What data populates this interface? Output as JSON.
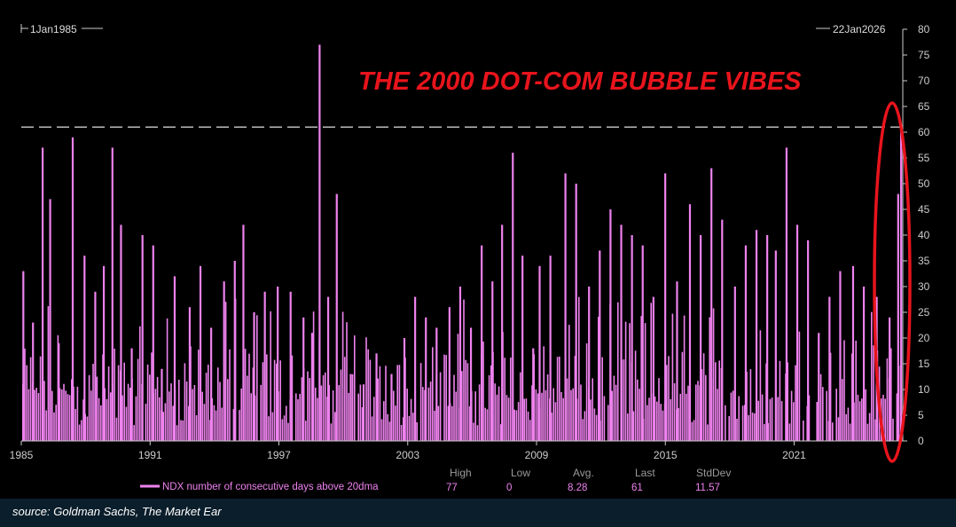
{
  "chart_data": {
    "type": "bar",
    "title": "THE 2000 DOT-COM BUBBLE VIBES",
    "date_start_label": "1Jan1985",
    "date_end_label": "22Jan2026",
    "x_tick_labels": [
      "1985",
      "1991",
      "1997",
      "2003",
      "2009",
      "2015",
      "2021"
    ],
    "x_tick_years": [
      1985,
      1991,
      1997,
      2003,
      2009,
      2015,
      2021
    ],
    "xlim": [
      1985.0,
      2026.06
    ],
    "ylim": [
      0,
      80
    ],
    "y_ticks": [
      0,
      5,
      10,
      15,
      20,
      25,
      30,
      35,
      40,
      45,
      50,
      55,
      60,
      65,
      70,
      75,
      80
    ],
    "reference_line": 61,
    "highlight_range": [
      2024.9,
      2026.06
    ],
    "series": [
      {
        "name": "NDX number of consecutive days above 20dma",
        "color": "#ee82ee",
        "stats_headers": [
          "High",
          "Low",
          "Avg.",
          "Last",
          "StdDev"
        ],
        "stats_values": [
          "77",
          "0",
          "8.28",
          "61",
          "11.57"
        ],
        "peaks": [
          {
            "x": 1985.05,
            "y": 33
          },
          {
            "x": 1985.5,
            "y": 23
          },
          {
            "x": 1985.95,
            "y": 57
          },
          {
            "x": 1986.3,
            "y": 47
          },
          {
            "x": 1986.7,
            "y": 19
          },
          {
            "x": 1987.35,
            "y": 59
          },
          {
            "x": 1987.9,
            "y": 36
          },
          {
            "x": 1988.4,
            "y": 29
          },
          {
            "x": 1988.8,
            "y": 34
          },
          {
            "x": 1989.2,
            "y": 57
          },
          {
            "x": 1989.6,
            "y": 42
          },
          {
            "x": 1990.1,
            "y": 18
          },
          {
            "x": 1990.6,
            "y": 40
          },
          {
            "x": 1991.1,
            "y": 38
          },
          {
            "x": 1991.5,
            "y": 14
          },
          {
            "x": 1992.1,
            "y": 32
          },
          {
            "x": 1992.8,
            "y": 26
          },
          {
            "x": 1993.3,
            "y": 34
          },
          {
            "x": 1993.8,
            "y": 22
          },
          {
            "x": 1994.4,
            "y": 31
          },
          {
            "x": 1994.9,
            "y": 35
          },
          {
            "x": 1995.3,
            "y": 42
          },
          {
            "x": 1995.8,
            "y": 25
          },
          {
            "x": 1996.3,
            "y": 29
          },
          {
            "x": 1996.9,
            "y": 30
          },
          {
            "x": 1997.5,
            "y": 29
          },
          {
            "x": 1998.1,
            "y": 24
          },
          {
            "x": 1998.5,
            "y": 21
          },
          {
            "x": 1998.85,
            "y": 77
          },
          {
            "x": 1999.25,
            "y": 28
          },
          {
            "x": 1999.65,
            "y": 48
          },
          {
            "x": 2000.3,
            "y": 13
          },
          {
            "x": 2000.9,
            "y": 11
          },
          {
            "x": 2001.5,
            "y": 17
          },
          {
            "x": 2002.2,
            "y": 13
          },
          {
            "x": 2002.8,
            "y": 20
          },
          {
            "x": 2003.3,
            "y": 28
          },
          {
            "x": 2003.8,
            "y": 24
          },
          {
            "x": 2004.3,
            "y": 22
          },
          {
            "x": 2004.9,
            "y": 26
          },
          {
            "x": 2005.4,
            "y": 30
          },
          {
            "x": 2005.9,
            "y": 22
          },
          {
            "x": 2006.4,
            "y": 38
          },
          {
            "x": 2006.9,
            "y": 31
          },
          {
            "x": 2007.35,
            "y": 42
          },
          {
            "x": 2007.85,
            "y": 56
          },
          {
            "x": 2008.3,
            "y": 36
          },
          {
            "x": 2008.8,
            "y": 18
          },
          {
            "x": 2009.1,
            "y": 34
          },
          {
            "x": 2009.6,
            "y": 36
          },
          {
            "x": 2010.3,
            "y": 52
          },
          {
            "x": 2010.8,
            "y": 50
          },
          {
            "x": 2011.4,
            "y": 30
          },
          {
            "x": 2011.9,
            "y": 37
          },
          {
            "x": 2012.4,
            "y": 45
          },
          {
            "x": 2012.9,
            "y": 42
          },
          {
            "x": 2013.4,
            "y": 40
          },
          {
            "x": 2013.9,
            "y": 38
          },
          {
            "x": 2014.4,
            "y": 28
          },
          {
            "x": 2014.95,
            "y": 52
          },
          {
            "x": 2015.5,
            "y": 31
          },
          {
            "x": 2016.1,
            "y": 46
          },
          {
            "x": 2016.6,
            "y": 40
          },
          {
            "x": 2017.1,
            "y": 53
          },
          {
            "x": 2017.6,
            "y": 43
          },
          {
            "x": 2018.2,
            "y": 30
          },
          {
            "x": 2018.7,
            "y": 38
          },
          {
            "x": 2019.2,
            "y": 41
          },
          {
            "x": 2019.7,
            "y": 40
          },
          {
            "x": 2020.1,
            "y": 37
          },
          {
            "x": 2020.6,
            "y": 57
          },
          {
            "x": 2021.1,
            "y": 42
          },
          {
            "x": 2021.6,
            "y": 39
          },
          {
            "x": 2022.1,
            "y": 21
          },
          {
            "x": 2022.6,
            "y": 28
          },
          {
            "x": 2023.1,
            "y": 33
          },
          {
            "x": 2023.7,
            "y": 34
          },
          {
            "x": 2024.2,
            "y": 30
          },
          {
            "x": 2024.8,
            "y": 28
          },
          {
            "x": 2025.4,
            "y": 24
          },
          {
            "x": 2025.8,
            "y": 48
          },
          {
            "x": 2026.06,
            "y": 61
          }
        ]
      }
    ]
  },
  "footer": {
    "source": "source: Goldman Sachs, The Market Ear"
  }
}
